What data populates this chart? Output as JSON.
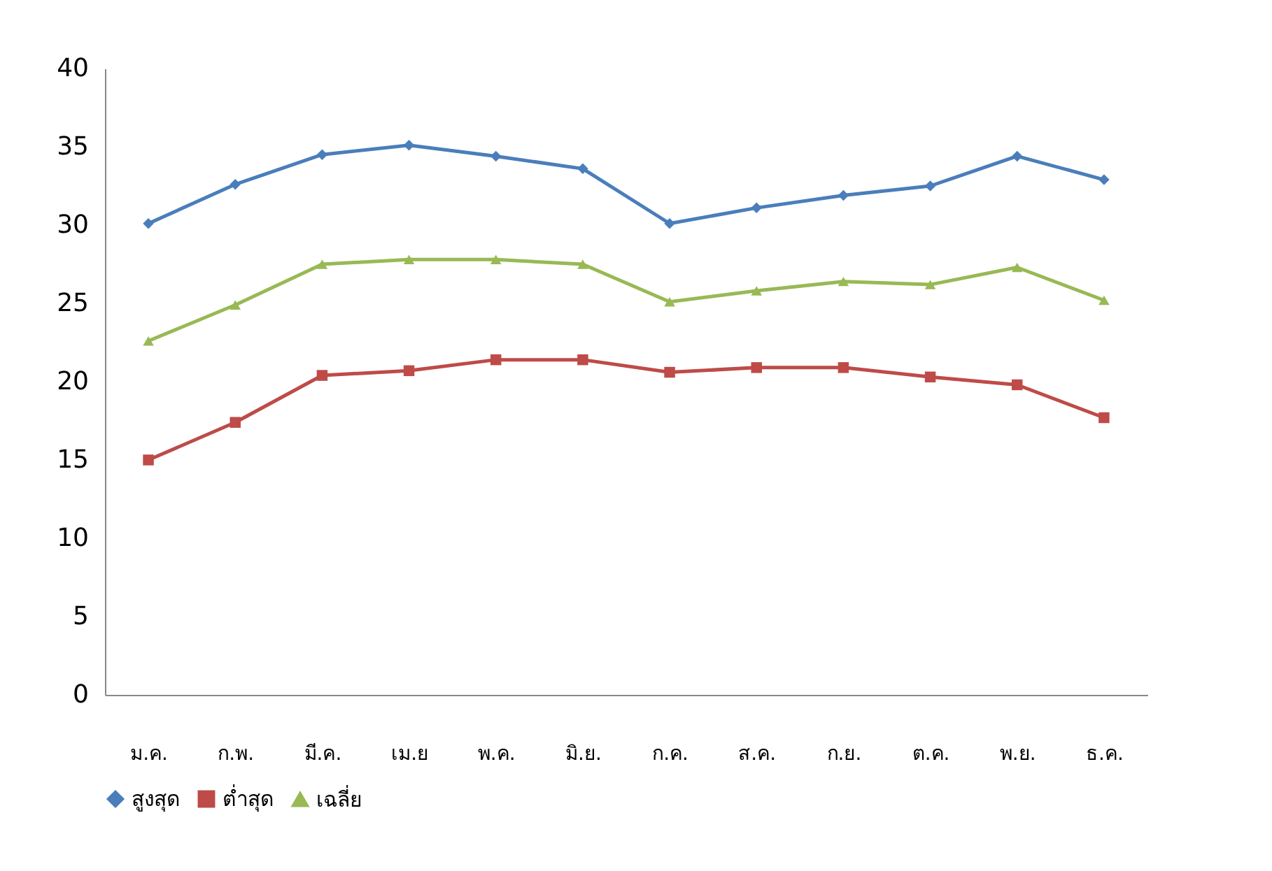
{
  "chart_data": {
    "type": "line",
    "categories": [
      "ม.ค.",
      "ก.พ.",
      "มี.ค.",
      "เม.ย",
      "พ.ค.",
      "มิ.ย.",
      "ก.ค.",
      "ส.ค.",
      "ก.ย.",
      "ต.ค.",
      "พ.ย.",
      "ธ.ค."
    ],
    "series": [
      {
        "name": "สูงสุด",
        "color": "#4a7ebb",
        "marker": "diamond",
        "values": [
          30.1,
          32.6,
          34.5,
          35.1,
          34.4,
          33.6,
          30.1,
          31.1,
          31.9,
          32.5,
          34.4,
          32.9
        ]
      },
      {
        "name": "ต่ำสุด",
        "color": "#be4b48",
        "marker": "square",
        "values": [
          15.0,
          17.4,
          20.4,
          20.7,
          21.4,
          21.4,
          20.6,
          20.9,
          20.9,
          20.3,
          19.8,
          17.7
        ]
      },
      {
        "name": "เฉลี่ย",
        "color": "#98b954",
        "marker": "triangle",
        "values": [
          22.6,
          24.9,
          27.5,
          27.8,
          27.8,
          27.5,
          25.1,
          25.8,
          26.4,
          26.2,
          27.3,
          25.2
        ]
      }
    ],
    "ylim": [
      0,
      40
    ],
    "yticks": [
      0,
      5,
      10,
      15,
      20,
      25,
      30,
      35,
      40
    ],
    "grid": false,
    "legend": "bottom",
    "line_style": "solid"
  }
}
